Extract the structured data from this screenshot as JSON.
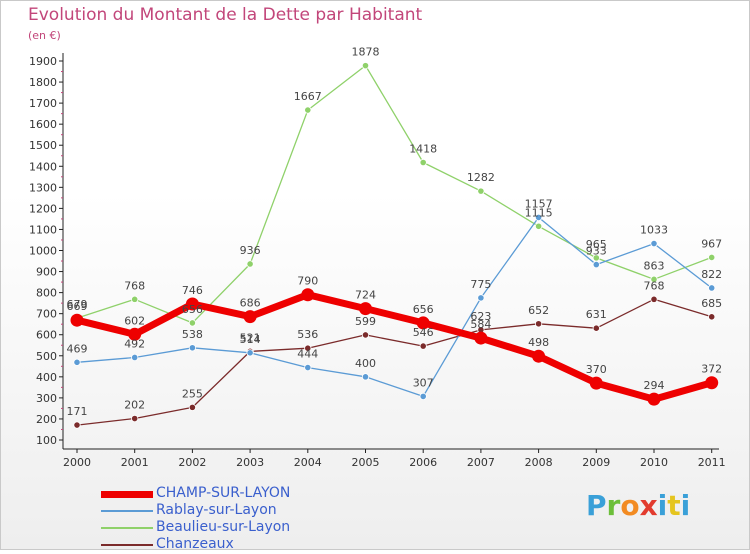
{
  "header": {
    "title": "Evolution du Montant de la Dette par Habitant",
    "unit": "(en €)"
  },
  "logo": {
    "letters": [
      "P",
      "r",
      "o",
      "x",
      "i",
      "t",
      "i"
    ]
  },
  "chart_data": {
    "type": "line",
    "title": "Evolution du Montant de la Dette par Habitant",
    "ylabel": "(en €)",
    "xlabel": "",
    "x": [
      "2000",
      "2001",
      "2002",
      "2003",
      "2004",
      "2005",
      "2006",
      "2007",
      "2008",
      "2009",
      "2010",
      "2011"
    ],
    "ylim": [
      100,
      1900
    ],
    "yticks": [
      100,
      200,
      300,
      400,
      500,
      600,
      700,
      800,
      900,
      1000,
      1100,
      1200,
      1300,
      1400,
      1500,
      1600,
      1700,
      1800,
      1900
    ],
    "grid": false,
    "legend_position": "bottom-left",
    "series": [
      {
        "name": "CHAMP-SUR-LAYON",
        "color": "#ee0000",
        "values": [
          669,
          602,
          746,
          686,
          790,
          724,
          656,
          584,
          498,
          370,
          294,
          372
        ]
      },
      {
        "name": "Rablay-sur-Layon",
        "color": "#5b9bd5",
        "values": [
          469,
          492,
          538,
          514,
          444,
          400,
          307,
          775,
          1157,
          933,
          1033,
          822
        ]
      },
      {
        "name": "Beaulieu-sur-Layon",
        "color": "#8fd16a",
        "values": [
          679,
          768,
          656,
          936,
          1667,
          1878,
          1418,
          1282,
          1115,
          965,
          863,
          967
        ]
      },
      {
        "name": "Chanzeaux",
        "color": "#7b2b2b",
        "values": [
          171,
          202,
          255,
          521,
          536,
          599,
          546,
          623,
          652,
          631,
          768,
          685
        ]
      }
    ]
  }
}
